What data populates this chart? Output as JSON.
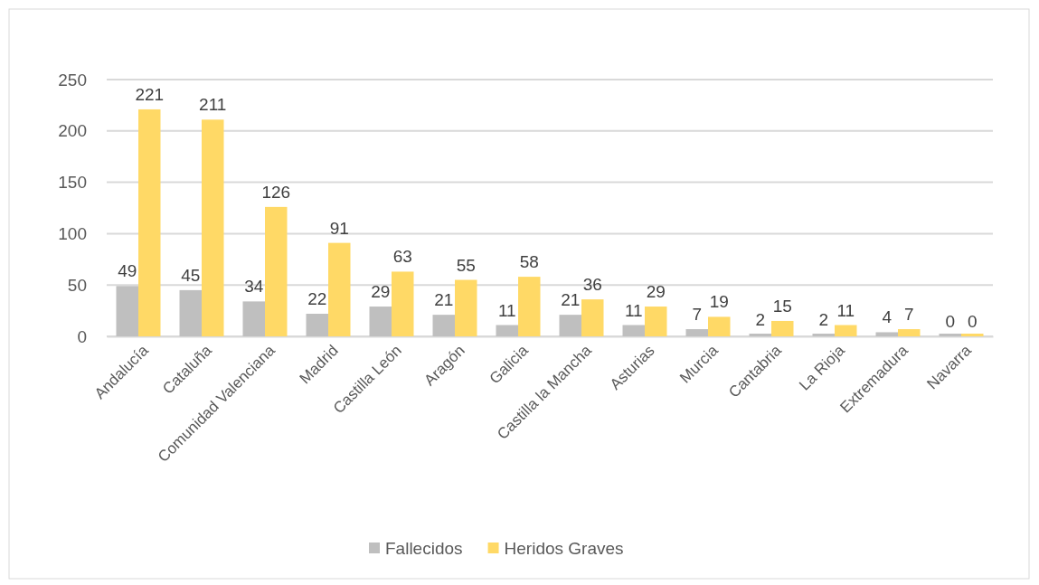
{
  "chart_data": {
    "type": "bar",
    "categories": [
      "Andalucía",
      "Cataluña",
      "Comunidad Valenciana",
      "Madrid",
      "Castilla León",
      "Aragón",
      "Galicia",
      "Castilla la Mancha",
      "Asturias",
      "Murcia",
      "Cantabria",
      "La Rioja",
      "Extremadura",
      "Navarra"
    ],
    "series": [
      {
        "name": "Fallecidos",
        "color": "#bfbfbf",
        "values": [
          49,
          45,
          34,
          22,
          29,
          21,
          11,
          21,
          11,
          7,
          2,
          2,
          4,
          0
        ]
      },
      {
        "name": "Heridos Graves",
        "color": "#ffd966",
        "values": [
          221,
          211,
          126,
          91,
          63,
          55,
          58,
          36,
          29,
          19,
          15,
          11,
          7,
          0
        ]
      }
    ],
    "ylim": [
      0,
      250
    ],
    "yticks": [
      0,
      50,
      100,
      150,
      200,
      250
    ],
    "grid": "y",
    "legend": "bottom",
    "data_labels": true
  }
}
